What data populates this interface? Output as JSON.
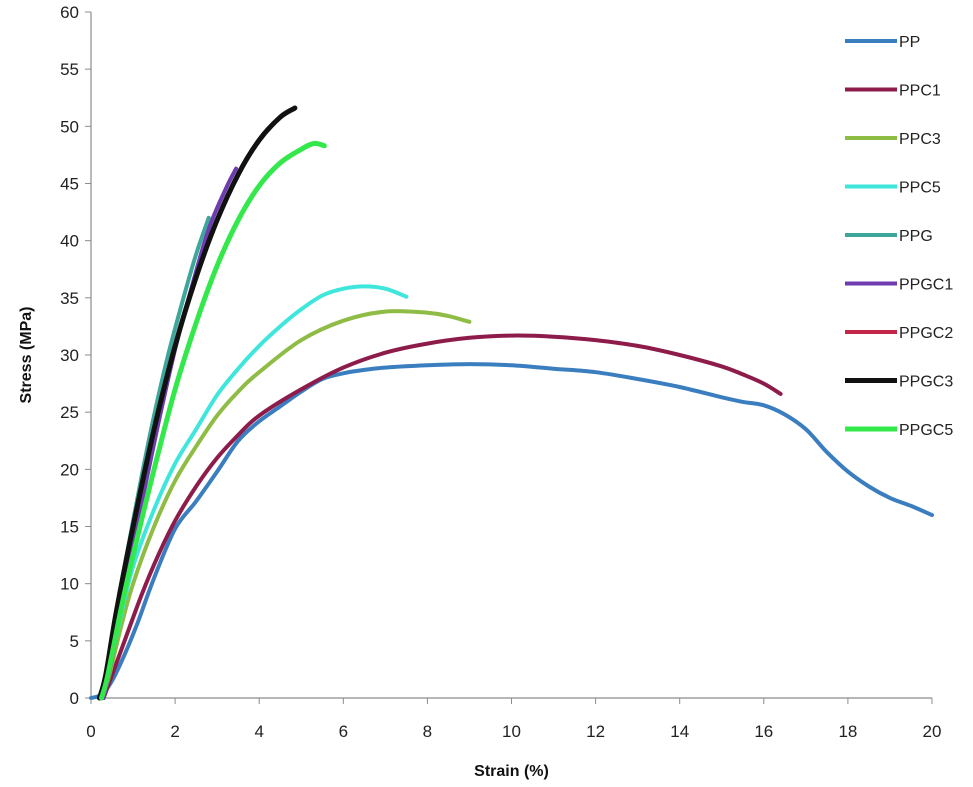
{
  "chart_data": {
    "type": "line",
    "title": "",
    "xlabel": "Strain (%)",
    "ylabel": "Stress (MPa)",
    "xlim": [
      0,
      20
    ],
    "ylim": [
      0,
      60
    ],
    "xticks": [
      0,
      2,
      4,
      6,
      8,
      10,
      12,
      14,
      16,
      18,
      20
    ],
    "yticks": [
      0,
      5,
      10,
      15,
      20,
      25,
      30,
      35,
      40,
      45,
      50,
      55,
      60
    ],
    "grid": false,
    "legend_position": "right",
    "series": [
      {
        "name": "PP",
        "color": "#3a7ebf",
        "width": 4,
        "x": [
          0,
          0.25,
          0.5,
          0.8,
          1.1,
          1.5,
          2.0,
          2.5,
          3.0,
          3.5,
          4.0,
          4.5,
          5.0,
          5.5,
          6.0,
          6.5,
          7.0,
          8.0,
          9.0,
          10.0,
          11.0,
          12.0,
          13.0,
          14.0,
          15.0,
          15.5,
          16.0,
          16.5,
          17.0,
          17.5,
          18.0,
          18.5,
          19.0,
          19.5,
          20.0
        ],
        "y": [
          0,
          0.3,
          1.5,
          3.8,
          6.5,
          10.5,
          14.8,
          17.2,
          19.8,
          22.5,
          24.2,
          25.5,
          26.8,
          27.9,
          28.4,
          28.7,
          28.9,
          29.1,
          29.2,
          29.1,
          28.8,
          28.5,
          27.9,
          27.2,
          26.3,
          25.9,
          25.6,
          24.8,
          23.5,
          21.5,
          19.8,
          18.5,
          17.5,
          16.8,
          16.0
        ]
      },
      {
        "name": "PPC1",
        "color": "#8e1c4a",
        "width": 4,
        "x": [
          0.3,
          0.5,
          0.8,
          1.2,
          1.6,
          2.0,
          2.5,
          3.0,
          3.5,
          4.0,
          5.0,
          6.0,
          7.0,
          8.0,
          9.0,
          10.0,
          11.0,
          12.0,
          13.0,
          14.0,
          15.0,
          15.5,
          16.0,
          16.4
        ],
        "y": [
          0,
          2.0,
          5.0,
          9.0,
          12.5,
          15.5,
          18.5,
          21.0,
          23.0,
          24.7,
          27.0,
          28.9,
          30.2,
          31.0,
          31.5,
          31.7,
          31.6,
          31.3,
          30.8,
          30.0,
          29.0,
          28.3,
          27.5,
          26.6
        ]
      },
      {
        "name": "PPC3",
        "color": "#8fbc45",
        "width": 4,
        "x": [
          0.25,
          0.4,
          0.7,
          1.0,
          1.5,
          2.0,
          2.5,
          3.0,
          3.5,
          4.0,
          5.0,
          6.0,
          7.0,
          8.0,
          8.5,
          9.0
        ],
        "y": [
          0,
          1.5,
          6.0,
          10.0,
          15.0,
          19.0,
          22.0,
          24.7,
          26.8,
          28.5,
          31.3,
          33.0,
          33.8,
          33.7,
          33.4,
          32.9
        ]
      },
      {
        "name": "PPC5",
        "color": "#3ee6dc",
        "width": 4,
        "x": [
          0.25,
          0.4,
          0.7,
          1.0,
          1.5,
          2.0,
          2.5,
          3.0,
          3.5,
          4.0,
          4.5,
          5.0,
          5.5,
          6.0,
          6.5,
          7.0,
          7.5
        ],
        "y": [
          0,
          2.0,
          7.0,
          11.5,
          16.5,
          20.5,
          23.5,
          26.5,
          28.8,
          30.8,
          32.5,
          34.0,
          35.2,
          35.8,
          36.0,
          35.8,
          35.1
        ]
      },
      {
        "name": "PPG",
        "color": "#3fa69a",
        "width": 4,
        "x": [
          0.2,
          0.3,
          0.6,
          1.0,
          1.4,
          1.8,
          2.2,
          2.5,
          2.8
        ],
        "y": [
          0,
          1.0,
          7.5,
          15.5,
          23.0,
          29.5,
          35.0,
          38.8,
          42.0
        ]
      },
      {
        "name": "PPGC1",
        "color": "#6e3bb0",
        "width": 4,
        "x": [
          0.3,
          0.5,
          0.8,
          1.2,
          1.6,
          2.0,
          2.4,
          2.8,
          3.2,
          3.45
        ],
        "y": [
          0,
          3.5,
          9.5,
          17.0,
          24.0,
          30.5,
          36.0,
          41.0,
          44.5,
          46.3
        ]
      },
      {
        "name": "PPGC2",
        "color": "#c2274a",
        "width": 4,
        "x": [],
        "y": []
      },
      {
        "name": "PPGC3",
        "color": "#111111",
        "width": 5,
        "x": [
          0.2,
          0.35,
          0.6,
          1.0,
          1.5,
          2.0,
          2.5,
          3.0,
          3.5,
          4.0,
          4.5,
          4.85
        ],
        "y": [
          0,
          2.0,
          7.5,
          15.0,
          23.5,
          30.8,
          36.8,
          41.8,
          45.8,
          48.8,
          50.8,
          51.6
        ]
      },
      {
        "name": "PPGC5",
        "color": "#33e84a",
        "width": 5,
        "x": [
          0.25,
          0.4,
          0.7,
          1.0,
          1.5,
          2.0,
          2.5,
          3.0,
          3.5,
          4.0,
          4.5,
          5.0,
          5.3,
          5.55
        ],
        "y": [
          0,
          2.0,
          7.5,
          12.5,
          20.0,
          27.0,
          32.8,
          37.8,
          41.8,
          44.8,
          46.8,
          48.0,
          48.5,
          48.3
        ]
      }
    ]
  }
}
